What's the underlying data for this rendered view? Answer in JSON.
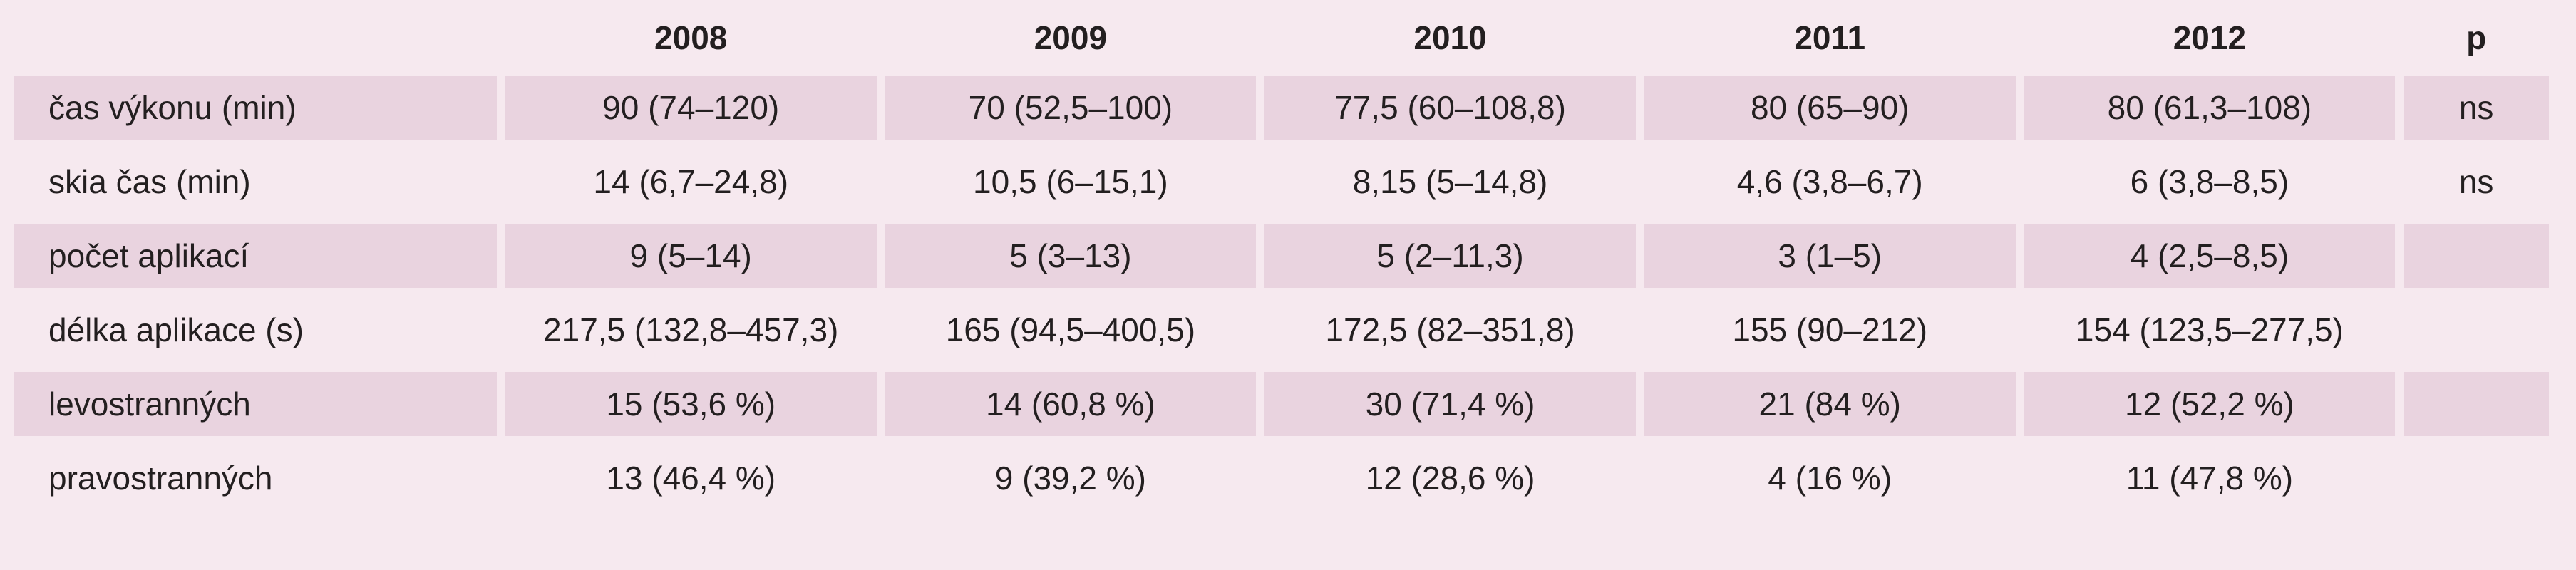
{
  "table": {
    "headers": [
      "",
      "2008",
      "2009",
      "2010",
      "2011",
      "2012",
      "p"
    ],
    "rows": [
      {
        "label": "čas výkonu (min)",
        "values": [
          "90 (74–120)",
          "70 (52,5–100)",
          "77,5 (60–108,8)",
          "80 (65–90)",
          "80 (61,3–108)"
        ],
        "p": "ns"
      },
      {
        "label": "skia čas (min)",
        "values": [
          "14 (6,7–24,8)",
          "10,5 (6–15,1)",
          "8,15 (5–14,8)",
          "4,6 (3,8–6,7)",
          "6 (3,8–8,5)"
        ],
        "p": "ns"
      },
      {
        "label": "počet aplikací",
        "values": [
          "9 (5–14)",
          "5 (3–13)",
          "5 (2–11,3)",
          "3 (1–5)",
          "4 (2,5–8,5)"
        ],
        "p": ""
      },
      {
        "label": "délka aplikace (s)",
        "values": [
          "217,5 (132,8–457,3)",
          "165 (94,5–400,5)",
          "172,5 (82–351,8)",
          "155 (90–212)",
          "154 (123,5–277,5)"
        ],
        "p": ""
      },
      {
        "label": "levostranných",
        "values": [
          "15 (53,6 %)",
          "14 (60,8 %)",
          "30 (71,4 %)",
          "21 (84 %)",
          "12 (52,2 %)"
        ],
        "p": ""
      },
      {
        "label": "pravostranných",
        "values": [
          "13 (46,4 %)",
          "9 (39,2 %)",
          "12 (28,6 %)",
          "4 (16 %)",
          "11 (47,8 %)"
        ],
        "p": ""
      }
    ]
  },
  "colors": {
    "background": "#f6e9ef",
    "row_shade": "#e9d3df",
    "text": "#231f20"
  }
}
